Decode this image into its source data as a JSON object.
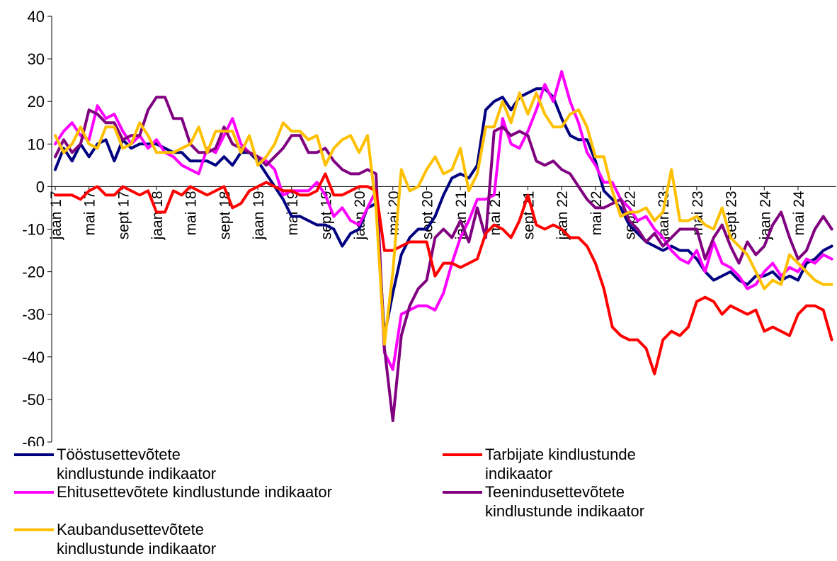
{
  "chart_data": {
    "type": "line",
    "categories": [
      "jaan 17",
      null,
      null,
      null,
      "mai 17",
      null,
      null,
      null,
      "sept 17",
      null,
      null,
      null,
      "jaan 18",
      null,
      null,
      null,
      "mai 18",
      null,
      null,
      null,
      "sept 18",
      null,
      null,
      null,
      "jaan 19",
      null,
      null,
      null,
      "mai 19",
      null,
      null,
      null,
      "sept 19",
      null,
      null,
      null,
      "jaan 20",
      null,
      null,
      null,
      "mai 20",
      null,
      null,
      null,
      "sept 20",
      null,
      null,
      null,
      "jaan 21",
      null,
      null,
      null,
      "mai 21",
      null,
      null,
      null,
      "sept 21",
      null,
      null,
      null,
      "jaan 22",
      null,
      null,
      null,
      "mai 22",
      null,
      null,
      null,
      "sept 22",
      null,
      null,
      null,
      "jaan 23",
      null,
      null,
      null,
      "mai 23",
      null,
      null,
      null,
      "sept 23",
      null,
      null,
      null,
      "jaan 24",
      null,
      null,
      null,
      "mai 24",
      null,
      null,
      null,
      null
    ],
    "ylim": [
      -60,
      40
    ],
    "yticks": [
      -60,
      -50,
      -40,
      -30,
      -20,
      -10,
      0,
      10,
      20,
      30,
      40
    ],
    "grid": false,
    "legend": "bottom",
    "series": [
      {
        "name": "Tööstusettevõtete kindlustunde indikaator",
        "color": "#000080",
        "values": [
          4,
          9,
          6,
          10,
          7,
          10,
          11,
          6,
          11,
          9,
          10,
          10,
          10,
          9,
          8,
          8,
          6,
          6,
          6,
          5,
          7,
          5,
          8,
          8,
          6,
          3,
          0,
          -3,
          -7,
          -7,
          -8,
          -9,
          -9,
          -10,
          -14,
          -11,
          -10,
          -5,
          -4,
          -35,
          -25,
          -16,
          -12,
          -10,
          -10,
          -7,
          -2,
          2,
          3,
          2,
          5,
          18,
          20,
          21,
          18,
          21,
          22,
          23,
          23,
          21,
          16,
          12,
          11,
          11,
          6,
          -1,
          -3,
          -5,
          -9,
          -11,
          -13,
          -14,
          -15,
          -14,
          -15,
          -15,
          -17,
          -20,
          -22,
          -21,
          -20,
          -22,
          -23,
          -21,
          -21,
          -20,
          -22,
          -21,
          -22,
          -18,
          -17,
          -15,
          -14
        ]
      },
      {
        "name": "Ehitusettevõtete kindlustunde indikaator",
        "color": "#ff00ff",
        "values": [
          10,
          13,
          15,
          12,
          11,
          19,
          16,
          17,
          13,
          10,
          12,
          9,
          11,
          8,
          7,
          5,
          4,
          3,
          9,
          8,
          12,
          16,
          10,
          8,
          7,
          6,
          4,
          -2,
          -1,
          -1,
          -1,
          1,
          -2,
          -7,
          -5,
          -8,
          -9,
          -5,
          -1,
          -39,
          -43,
          -30,
          -29,
          -28,
          -28,
          -29,
          -25,
          -18,
          -12,
          -8,
          -3,
          -3,
          -2,
          16,
          10,
          9,
          13,
          18,
          24,
          20,
          27,
          20,
          15,
          8,
          5,
          1,
          1,
          -3,
          -5,
          -8,
          -7,
          -10,
          -12,
          -15,
          -17,
          -18,
          -15,
          -20,
          -13,
          -18,
          -19,
          -21,
          -24,
          -23,
          -20,
          -18,
          -21,
          -19,
          -20,
          -17,
          -18,
          -16,
          -17
        ]
      },
      {
        "name": "Teenindusettevõtete kindlustunde indikaator",
        "color": "#800080",
        "values": [
          7,
          11,
          8,
          10,
          18,
          17,
          15,
          15,
          11,
          12,
          12,
          18,
          21,
          21,
          16,
          16,
          10,
          8,
          8,
          9,
          14,
          10,
          9,
          8,
          7,
          5,
          7,
          9,
          12,
          12,
          8,
          8,
          9,
          6,
          4,
          3,
          3,
          4,
          3,
          -38,
          -55,
          -35,
          -28,
          -24,
          -22,
          -12,
          -10,
          -12,
          -8,
          -13,
          -5,
          -12,
          13,
          14,
          12,
          13,
          12,
          6,
          5,
          6,
          4,
          3,
          0,
          -3,
          -5,
          -5,
          -4,
          -3,
          -8,
          -10,
          -13,
          -11,
          -14,
          -12,
          -10,
          -10,
          -10,
          -17,
          -12,
          -9,
          -14,
          -18,
          -13,
          -16,
          -14,
          -9,
          -6,
          -12,
          -17,
          -15,
          -10,
          -7,
          -10
        ]
      },
      {
        "name": "Tarbijate kindlustunde indikaator",
        "color": "#ff0000",
        "values": [
          -2,
          -2,
          -2,
          -3,
          -1,
          0,
          -2,
          -2,
          0,
          -1,
          -2,
          -1,
          -6,
          -6,
          -1,
          -2,
          0,
          -1,
          -2,
          -1,
          0,
          -5,
          -4,
          -1,
          0,
          1,
          0,
          -1,
          -1,
          -2,
          -2,
          -1,
          3,
          -2,
          -2,
          -1,
          0,
          0,
          -1,
          -15,
          -15,
          -14,
          -13,
          -13,
          -13,
          -21,
          -18,
          -18,
          -19,
          -18,
          -17,
          -11,
          -9,
          -10,
          -12,
          -8,
          -2,
          -9,
          -10,
          -9,
          -10,
          -12,
          -12,
          -14,
          -18,
          -24,
          -33,
          -35,
          -36,
          -36,
          -38,
          -44,
          -36,
          -34,
          -35,
          -33,
          -27,
          -26,
          -27,
          -30,
          -28,
          -29,
          -30,
          -29,
          -34,
          -33,
          -34,
          -35,
          -30,
          -28,
          -28,
          -29,
          -36
        ]
      },
      {
        "name": "Kaubandusettevõtete kindlustunde indikaator",
        "color": "#ffc000",
        "values": [
          12,
          8,
          10,
          14,
          10,
          9,
          14,
          14,
          9,
          10,
          15,
          12,
          8,
          8,
          8,
          9,
          10,
          14,
          8,
          13,
          13,
          13,
          8,
          12,
          5,
          7,
          10,
          15,
          13,
          13,
          11,
          12,
          5,
          9,
          11,
          12,
          8,
          12,
          -5,
          -37,
          -20,
          4,
          -1,
          0,
          4,
          7,
          3,
          4,
          9,
          -1,
          3,
          14,
          14,
          20,
          15,
          22,
          17,
          22,
          17,
          14,
          14,
          17,
          18,
          14,
          7,
          7,
          -1,
          -7,
          -6,
          -6,
          -5,
          -8,
          -6,
          4,
          -8,
          -8,
          -7,
          -9,
          -10,
          -5,
          -12,
          -14,
          -16,
          -20,
          -24,
          -22,
          -23,
          -16,
          -18,
          -20,
          -22,
          -23,
          -23
        ]
      }
    ]
  }
}
